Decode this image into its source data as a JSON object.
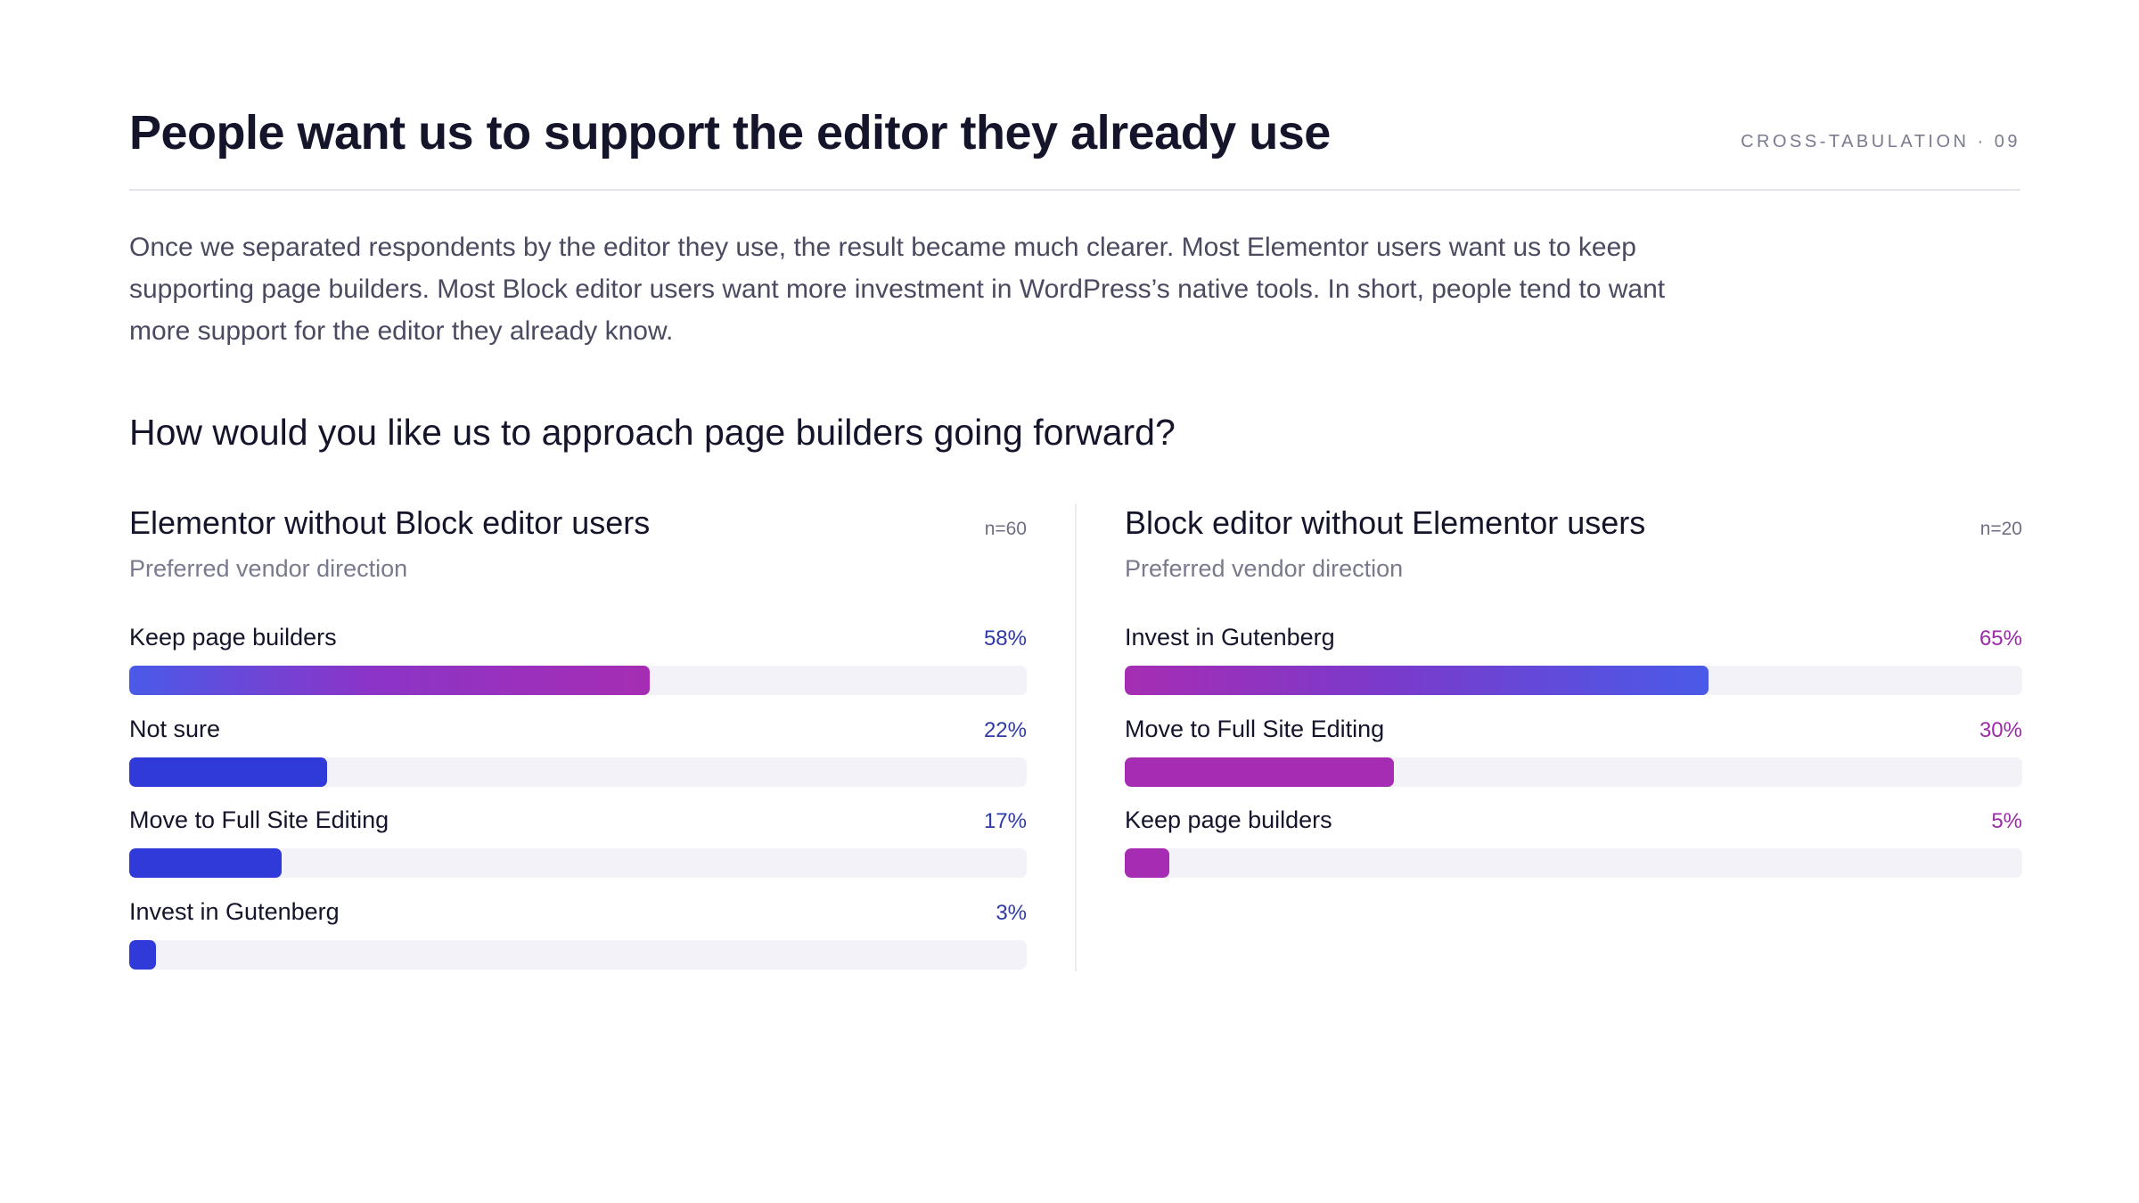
{
  "header": {
    "title": "People want us to support the editor they already use",
    "tag": "CROSS-TABULATION · 09"
  },
  "intro": "Once we separated respondents by the editor they use, the result became much clearer. Most Elementor users want us to keep supporting page builders. Most Block editor users want more investment in WordPress’s native tools. In short, people tend to want more support for the editor they already know.",
  "question": "How would you like us to approach page builders going forward?",
  "colors": {
    "blue": "#2f3ad8",
    "blue_light": "#4a5ae8",
    "magenta": "#a62db3",
    "track": "#f3f2f8",
    "pct_blue": "#2e3aa8",
    "pct_magenta": "#9b2ba8"
  },
  "chart_data": [
    {
      "type": "bar",
      "orientation": "horizontal",
      "title": "Elementor without Block editor users",
      "sample": "n=60",
      "subtitle": "Preferred vendor direction",
      "categories": [
        "Keep page builders",
        "Not sure",
        "Move to Full Site Editing",
        "Invest in Gutenberg"
      ],
      "values": [
        58,
        22,
        17,
        3
      ],
      "labels": [
        "58%",
        "22%",
        "17%",
        "3%"
      ],
      "xlim": [
        0,
        100
      ],
      "accent": "blue"
    },
    {
      "type": "bar",
      "orientation": "horizontal",
      "title": "Block editor without Elementor users",
      "sample": "n=20",
      "subtitle": "Preferred vendor direction",
      "categories": [
        "Invest in Gutenberg",
        "Move to Full Site Editing",
        "Keep page builders"
      ],
      "values": [
        65,
        30,
        5
      ],
      "labels": [
        "65%",
        "30%",
        "5%"
      ],
      "xlim": [
        0,
        100
      ],
      "accent": "magenta"
    }
  ]
}
